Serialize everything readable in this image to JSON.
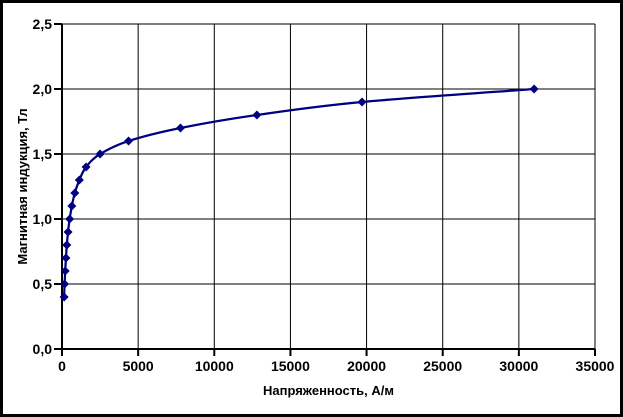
{
  "figure": {
    "background": "#ffffff",
    "border_color": "#000000"
  },
  "chart_data": {
    "type": "line",
    "xlabel": "Напряженность, А/м",
    "ylabel": "Магнитная индукция, Тл",
    "xlim": [
      0,
      35000
    ],
    "ylim": [
      0,
      2.5
    ],
    "grid": true,
    "legend_position": "none",
    "x_ticks": [
      0,
      5000,
      10000,
      15000,
      20000,
      25000,
      30000,
      35000
    ],
    "x_tick_labels": [
      "0",
      "5000",
      "10000",
      "15000",
      "20000",
      "25000",
      "30000",
      "35000"
    ],
    "y_ticks": [
      0,
      0.5,
      1.0,
      1.5,
      2.0,
      2.5
    ],
    "y_tick_labels": [
      "0,0",
      "0,5",
      "1,0",
      "1,5",
      "2,0",
      "2,5"
    ],
    "series": [
      {
        "color": "#000080",
        "marker": "diamond",
        "line_width": 2.25,
        "x": [
          140,
          171,
          211,
          261,
          318,
          397,
          502,
          647,
          843,
          1140,
          1580,
          2500,
          4370,
          7780,
          12800,
          19700,
          31000
        ],
        "y": [
          0.4,
          0.5,
          0.6,
          0.7,
          0.8,
          0.9,
          1.0,
          1.1,
          1.2,
          1.3,
          1.4,
          1.5,
          1.6,
          1.7,
          1.8,
          1.9,
          2.0
        ]
      }
    ],
    "colors": {
      "axis": "#000000",
      "grid": "#000000",
      "text": "#000000",
      "curve": "#000080",
      "plot_background": "#ffffff"
    }
  }
}
